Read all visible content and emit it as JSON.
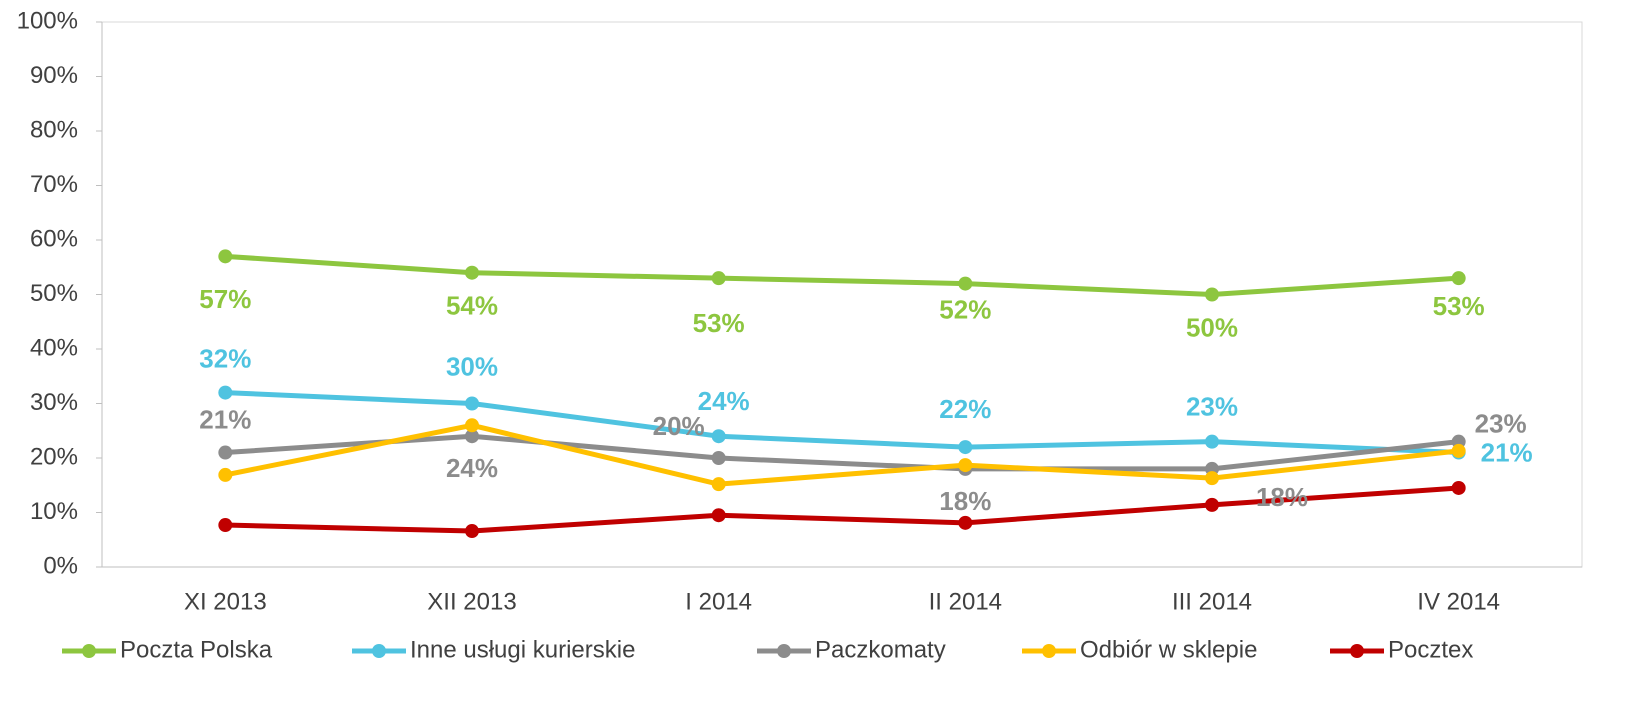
{
  "chart_data": {
    "type": "line",
    "categories": [
      "XI 2013",
      "XII 2013",
      "I 2014",
      "II 2014",
      "III 2014",
      "IV 2014"
    ],
    "ylim": [
      0,
      100
    ],
    "yticks": [
      {
        "value": 0,
        "label": "0%"
      },
      {
        "value": 10,
        "label": "10%"
      },
      {
        "value": 20,
        "label": "20%"
      },
      {
        "value": 30,
        "label": "30%"
      },
      {
        "value": 40,
        "label": "40%"
      },
      {
        "value": 50,
        "label": "50%"
      },
      {
        "value": 60,
        "label": "60%"
      },
      {
        "value": 70,
        "label": "70%"
      },
      {
        "value": 80,
        "label": "80%"
      },
      {
        "value": 90,
        "label": "90%"
      },
      {
        "value": 100,
        "label": "100%"
      }
    ],
    "legend": "bottom",
    "series": [
      {
        "name": "Poczta Polska",
        "color": "#8dc63f",
        "values": [
          57,
          54,
          53,
          52,
          50,
          53
        ],
        "value_labels": [
          "57%",
          "54%",
          "53%",
          "52%",
          "50%",
          "53%"
        ]
      },
      {
        "name": "Inne usługi kurierskie",
        "color": "#4fc3e0",
        "values": [
          32,
          30,
          24,
          22,
          23,
          21
        ],
        "value_labels": [
          "32%",
          "30%",
          "24%",
          "22%",
          "23%",
          "21%"
        ]
      },
      {
        "name": "Paczkomaty",
        "color": "#8c8c8c",
        "values": [
          21,
          24,
          20,
          18,
          18,
          23
        ],
        "value_labels": [
          "21%",
          "24%",
          "20%",
          "18%",
          "18%",
          "23%"
        ]
      },
      {
        "name": "Odbiór w sklepie",
        "color": "#ffc000",
        "values": [
          16.9,
          26,
          15.2,
          18.7,
          16.3,
          21.3
        ]
      },
      {
        "name": "Pocztex",
        "color": "#c00000",
        "values": [
          7.7,
          6.6,
          9.5,
          8.1,
          11.4,
          14.5
        ]
      }
    ]
  }
}
